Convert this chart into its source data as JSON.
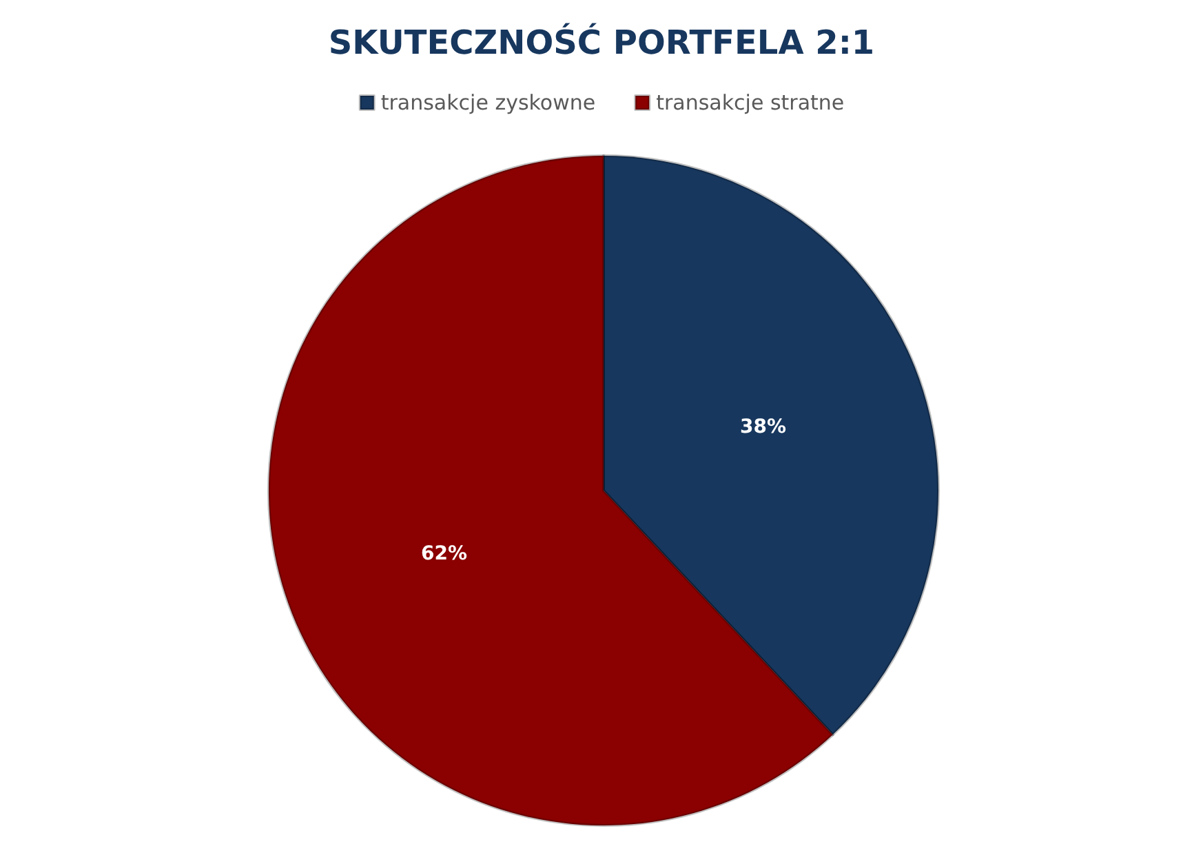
{
  "chart_data": {
    "type": "pie",
    "title": "SKUTECZNOŚĆ PORTFELA 2:1",
    "categories": [
      "transakcje zyskowne",
      "transakcje stratne"
    ],
    "values": [
      38,
      62
    ],
    "colors": [
      "#17375e",
      "#8b0000"
    ],
    "value_labels": [
      "38%",
      "62%"
    ],
    "legend": "top"
  }
}
